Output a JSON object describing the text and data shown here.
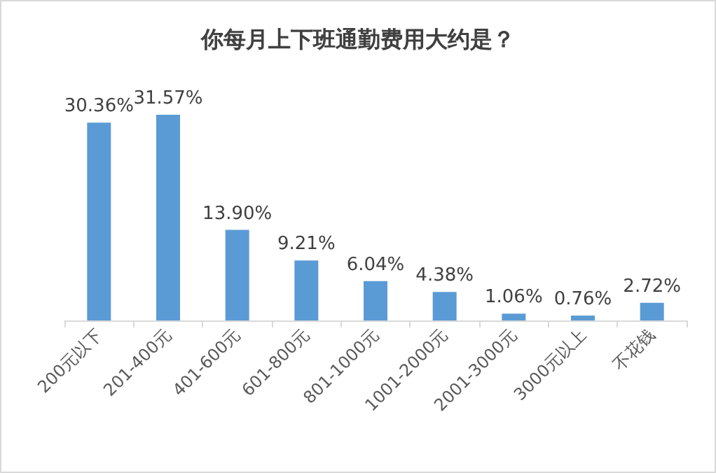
{
  "chart_data": {
    "type": "bar",
    "title": "你每月上下班通勤费用大约是？",
    "categories": [
      "200元以下",
      "201-400元",
      "401-600元",
      "601-800元",
      "801-1000元",
      "1001-2000元",
      "2001-3000元",
      "3000元以上",
      "不花钱"
    ],
    "values": [
      30.36,
      31.57,
      13.9,
      9.21,
      6.04,
      4.38,
      1.06,
      0.76,
      2.72
    ],
    "value_labels": [
      "30.36%",
      "31.57%",
      "13.90%",
      "9.21%",
      "6.04%",
      "4.38%",
      "1.06%",
      "0.76%",
      "2.72%"
    ],
    "color": "#5b9bd5",
    "grid": false,
    "tick_labels": "x"
  }
}
